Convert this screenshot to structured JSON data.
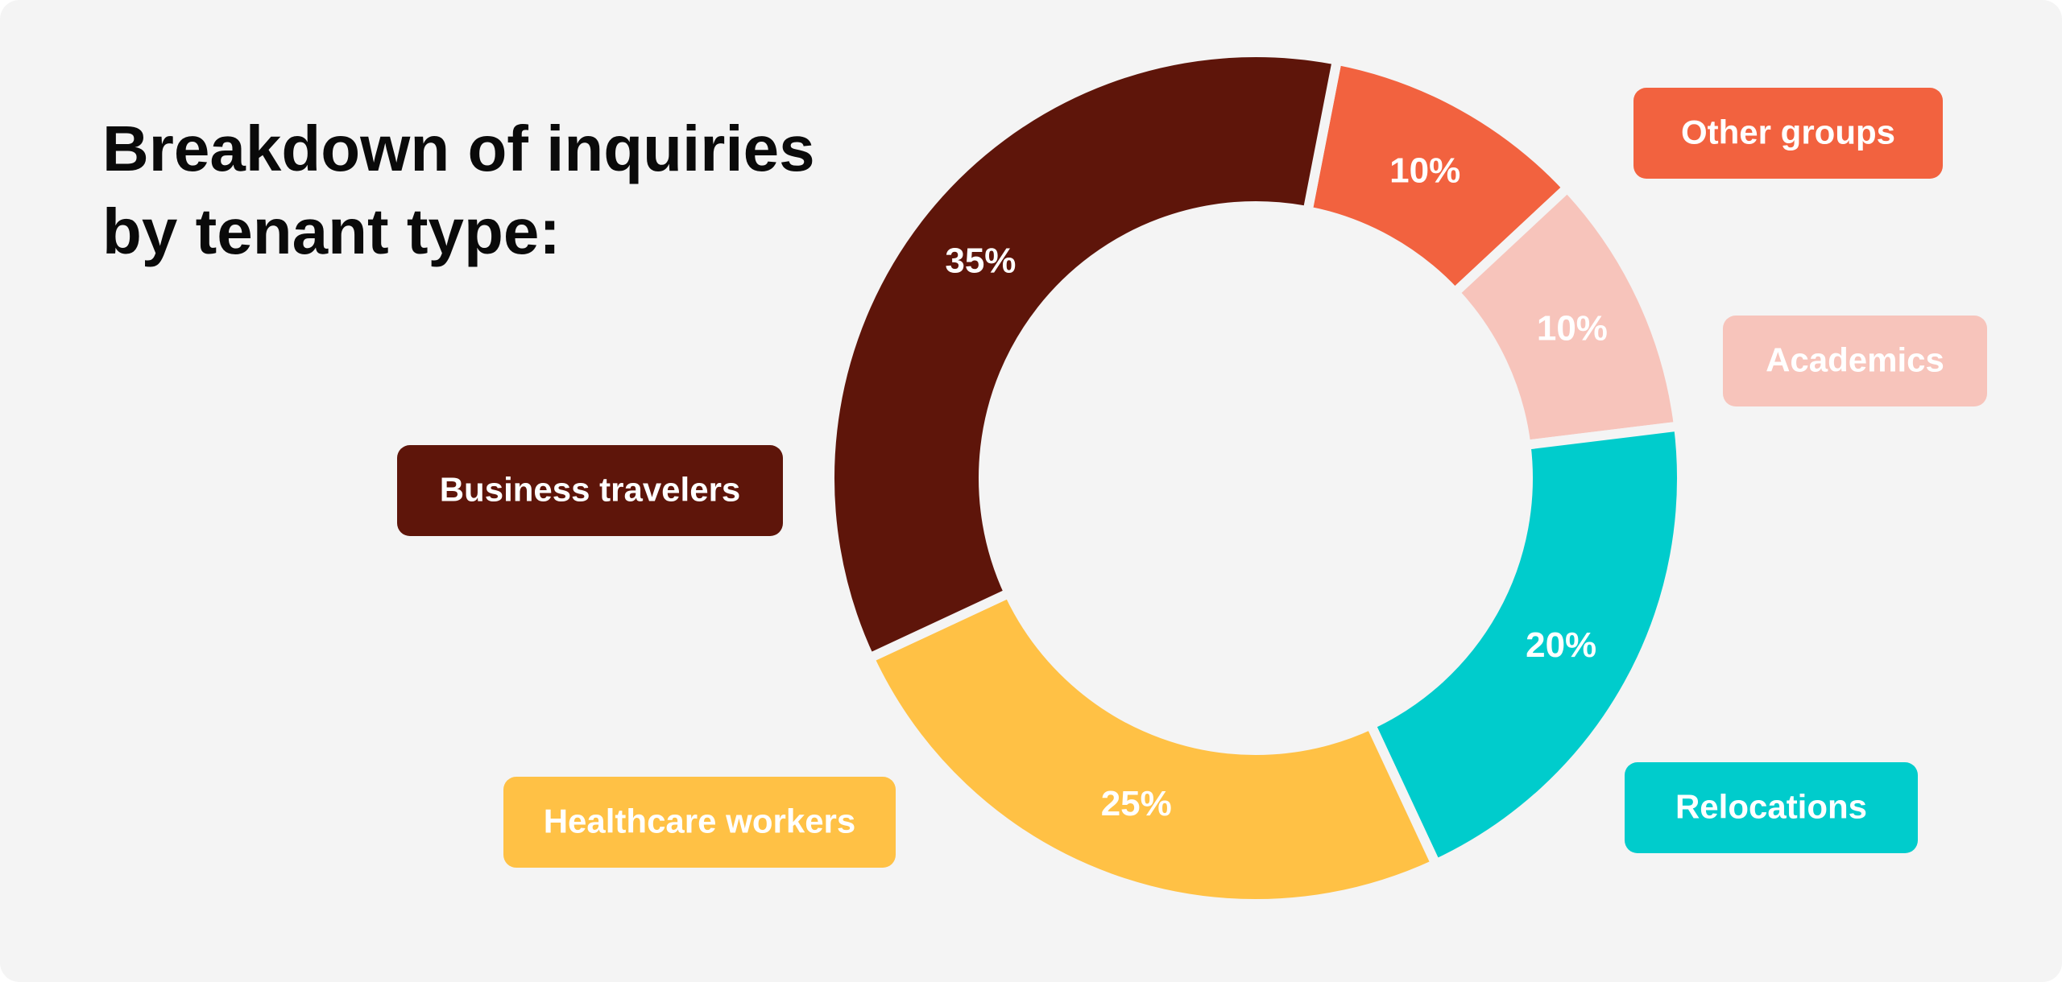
{
  "chart_data": {
    "type": "donut",
    "title": "Breakdown of inquiries by tenant type:",
    "categories": [
      "Other groups",
      "Academics",
      "Relocations",
      "Healthcare workers",
      "Business travelers"
    ],
    "values": [
      10,
      10,
      20,
      25,
      35
    ],
    "value_labels": [
      "10%",
      "10%",
      "20%",
      "25%",
      "35%"
    ],
    "colors": [
      "#f2623f",
      "#f7c4bb",
      "#00cccc",
      "#ffc145",
      "#5e150a"
    ]
  }
}
